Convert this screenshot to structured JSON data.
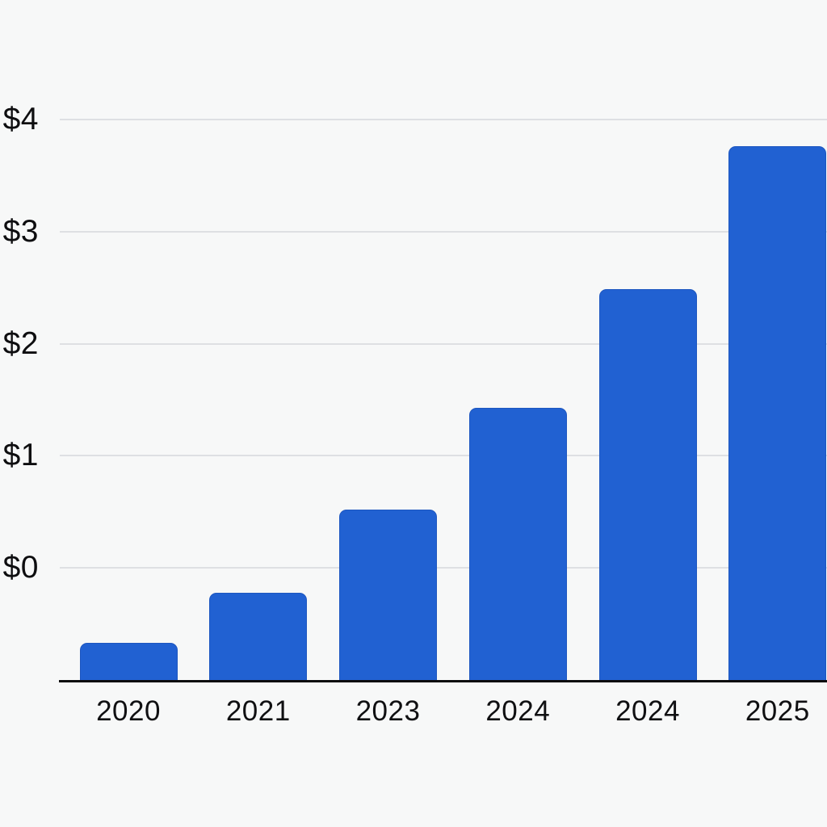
{
  "page": {
    "background_color": "#f7f8f8"
  },
  "chart_data": {
    "type": "bar",
    "title": "",
    "xlabel": "",
    "ylabel": "",
    "categories": [
      "2020",
      "2021",
      "2023",
      "2024",
      "2024",
      "2025"
    ],
    "values": [
      -0.67,
      -0.22,
      0.52,
      1.43,
      2.49,
      3.76
    ],
    "bar_heights_from_baseline": [
      0.34,
      0.79,
      1.53,
      2.44,
      3.5,
      4.77
    ],
    "baseline_value": -1.0,
    "ylim": [
      -1.0,
      5.07
    ],
    "y_ticks": [
      {
        "label": "$4",
        "value": 4
      },
      {
        "label": "$3",
        "value": 3
      },
      {
        "label": "$2",
        "value": 2
      },
      {
        "label": "$1",
        "value": 1
      },
      {
        "label": "$0",
        "value": 0
      }
    ],
    "grid": true,
    "legend": false,
    "bar_color": "#2161d2",
    "gridline_color": "#dee0e3",
    "axis_line_color": "#0d0d0f",
    "text_color": "#0e0e10"
  }
}
